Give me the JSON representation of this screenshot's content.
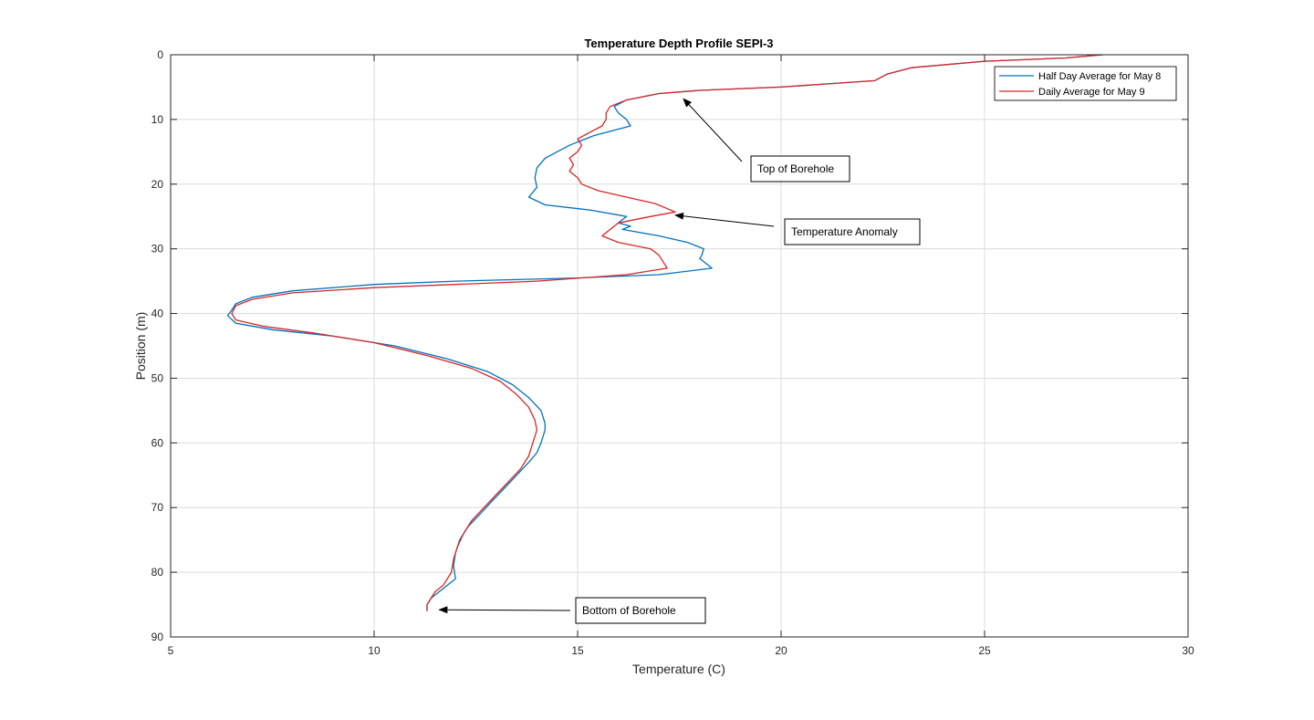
{
  "chart_data": {
    "type": "line",
    "title": "Temperature Depth Profile SEPI-3",
    "xlabel": "Temperature (C)",
    "ylabel": "Position (m)",
    "xlim": [
      5,
      30
    ],
    "ylim": [
      0,
      90
    ],
    "y_reversed": true,
    "x_ticks": [
      5,
      10,
      15,
      20,
      25,
      30
    ],
    "y_ticks": [
      0,
      10,
      20,
      30,
      40,
      50,
      60,
      70,
      80,
      90
    ],
    "grid": true,
    "legend_position": "top-right",
    "series": [
      {
        "name": "Half Day Average for May 8",
        "color": "#0072BD",
        "points": [
          [
            27.9,
            0
          ],
          [
            27.0,
            0.5
          ],
          [
            25.0,
            1
          ],
          [
            23.2,
            2
          ],
          [
            22.6,
            3
          ],
          [
            22.3,
            4
          ],
          [
            20.0,
            5
          ],
          [
            18.0,
            5.5
          ],
          [
            17.0,
            6
          ],
          [
            16.2,
            7
          ],
          [
            15.9,
            8
          ],
          [
            16.0,
            9
          ],
          [
            16.2,
            10
          ],
          [
            16.3,
            11
          ],
          [
            15.4,
            12.5
          ],
          [
            14.8,
            14
          ],
          [
            14.2,
            16
          ],
          [
            14.0,
            17.5
          ],
          [
            13.95,
            19
          ],
          [
            14.0,
            20.5
          ],
          [
            13.8,
            22
          ],
          [
            14.2,
            23.2
          ],
          [
            15.3,
            24
          ],
          [
            16.2,
            25
          ],
          [
            16.0,
            26
          ],
          [
            16.3,
            26.5
          ],
          [
            16.1,
            27
          ],
          [
            17.0,
            28
          ],
          [
            17.7,
            29
          ],
          [
            18.1,
            30
          ],
          [
            18.05,
            31
          ],
          [
            18.0,
            31.5
          ],
          [
            18.3,
            33
          ],
          [
            17.0,
            34
          ],
          [
            15.0,
            34.5
          ],
          [
            12.0,
            35
          ],
          [
            10.0,
            35.5
          ],
          [
            8.0,
            36.5
          ],
          [
            7.0,
            37.5
          ],
          [
            6.6,
            38.5
          ],
          [
            6.5,
            39.5
          ],
          [
            6.4,
            40.3
          ],
          [
            6.6,
            41.5
          ],
          [
            7.5,
            42.5
          ],
          [
            9.0,
            43.5
          ],
          [
            10.5,
            45
          ],
          [
            11.8,
            47
          ],
          [
            12.8,
            49
          ],
          [
            13.4,
            51
          ],
          [
            13.8,
            53
          ],
          [
            14.1,
            55
          ],
          [
            14.2,
            57
          ],
          [
            14.2,
            58
          ],
          [
            14.1,
            60
          ],
          [
            14.0,
            61.5
          ],
          [
            13.8,
            63
          ],
          [
            13.5,
            65
          ],
          [
            13.2,
            67
          ],
          [
            12.9,
            69
          ],
          [
            12.6,
            71
          ],
          [
            12.3,
            73
          ],
          [
            12.1,
            75
          ],
          [
            12.0,
            77
          ],
          [
            11.95,
            79
          ],
          [
            12.0,
            81
          ],
          [
            11.8,
            82
          ],
          [
            11.6,
            83
          ],
          [
            11.4,
            84
          ],
          [
            11.3,
            85
          ],
          [
            11.3,
            86
          ]
        ]
      },
      {
        "name": "Daily Average for May 9",
        "color": "#D62728",
        "points": [
          [
            27.9,
            0
          ],
          [
            27.0,
            0.5
          ],
          [
            25.0,
            1
          ],
          [
            23.2,
            2
          ],
          [
            22.6,
            3
          ],
          [
            22.3,
            4
          ],
          [
            20.0,
            5
          ],
          [
            18.0,
            5.5
          ],
          [
            17.0,
            6
          ],
          [
            16.2,
            7
          ],
          [
            15.8,
            8
          ],
          [
            15.7,
            9
          ],
          [
            15.7,
            10
          ],
          [
            15.6,
            11
          ],
          [
            15.3,
            12
          ],
          [
            15.0,
            13
          ],
          [
            15.1,
            14
          ],
          [
            15.0,
            15
          ],
          [
            14.8,
            16
          ],
          [
            14.9,
            17
          ],
          [
            14.8,
            18
          ],
          [
            15.0,
            19
          ],
          [
            15.1,
            20
          ],
          [
            15.5,
            21
          ],
          [
            16.2,
            22
          ],
          [
            16.9,
            23
          ],
          [
            17.4,
            24.3
          ],
          [
            16.8,
            25
          ],
          [
            16.0,
            26
          ],
          [
            15.8,
            27
          ],
          [
            15.6,
            28
          ],
          [
            16.0,
            29
          ],
          [
            16.8,
            30
          ],
          [
            17.0,
            31
          ],
          [
            17.1,
            32
          ],
          [
            17.2,
            33
          ],
          [
            16.2,
            34
          ],
          [
            14.0,
            35
          ],
          [
            12.0,
            35.5
          ],
          [
            10.0,
            36
          ],
          [
            8.0,
            36.8
          ],
          [
            7.0,
            37.8
          ],
          [
            6.6,
            38.8
          ],
          [
            6.5,
            40
          ],
          [
            6.6,
            41
          ],
          [
            7.3,
            42
          ],
          [
            8.5,
            43
          ],
          [
            10.0,
            44.5
          ],
          [
            11.3,
            46.5
          ],
          [
            12.4,
            48.5
          ],
          [
            13.1,
            50.5
          ],
          [
            13.5,
            52.5
          ],
          [
            13.8,
            54.5
          ],
          [
            13.95,
            56.5
          ],
          [
            14.0,
            58
          ],
          [
            13.9,
            60
          ],
          [
            13.8,
            62
          ],
          [
            13.6,
            64
          ],
          [
            13.3,
            66
          ],
          [
            13.0,
            68
          ],
          [
            12.7,
            70
          ],
          [
            12.4,
            72
          ],
          [
            12.2,
            74
          ],
          [
            12.05,
            76
          ],
          [
            11.95,
            78
          ],
          [
            11.9,
            80
          ],
          [
            11.7,
            82
          ],
          [
            11.5,
            83
          ],
          [
            11.4,
            84
          ],
          [
            11.3,
            85
          ],
          [
            11.3,
            86
          ]
        ]
      }
    ],
    "annotations": [
      {
        "text": "Top of Borehole",
        "arrow_to": [
          17.6,
          6.8
        ]
      },
      {
        "text": "Temperature Anomaly",
        "arrow_to": [
          17.4,
          24.8
        ]
      },
      {
        "text": "Bottom of Borehole",
        "arrow_to": [
          11.6,
          85.8
        ]
      }
    ]
  }
}
